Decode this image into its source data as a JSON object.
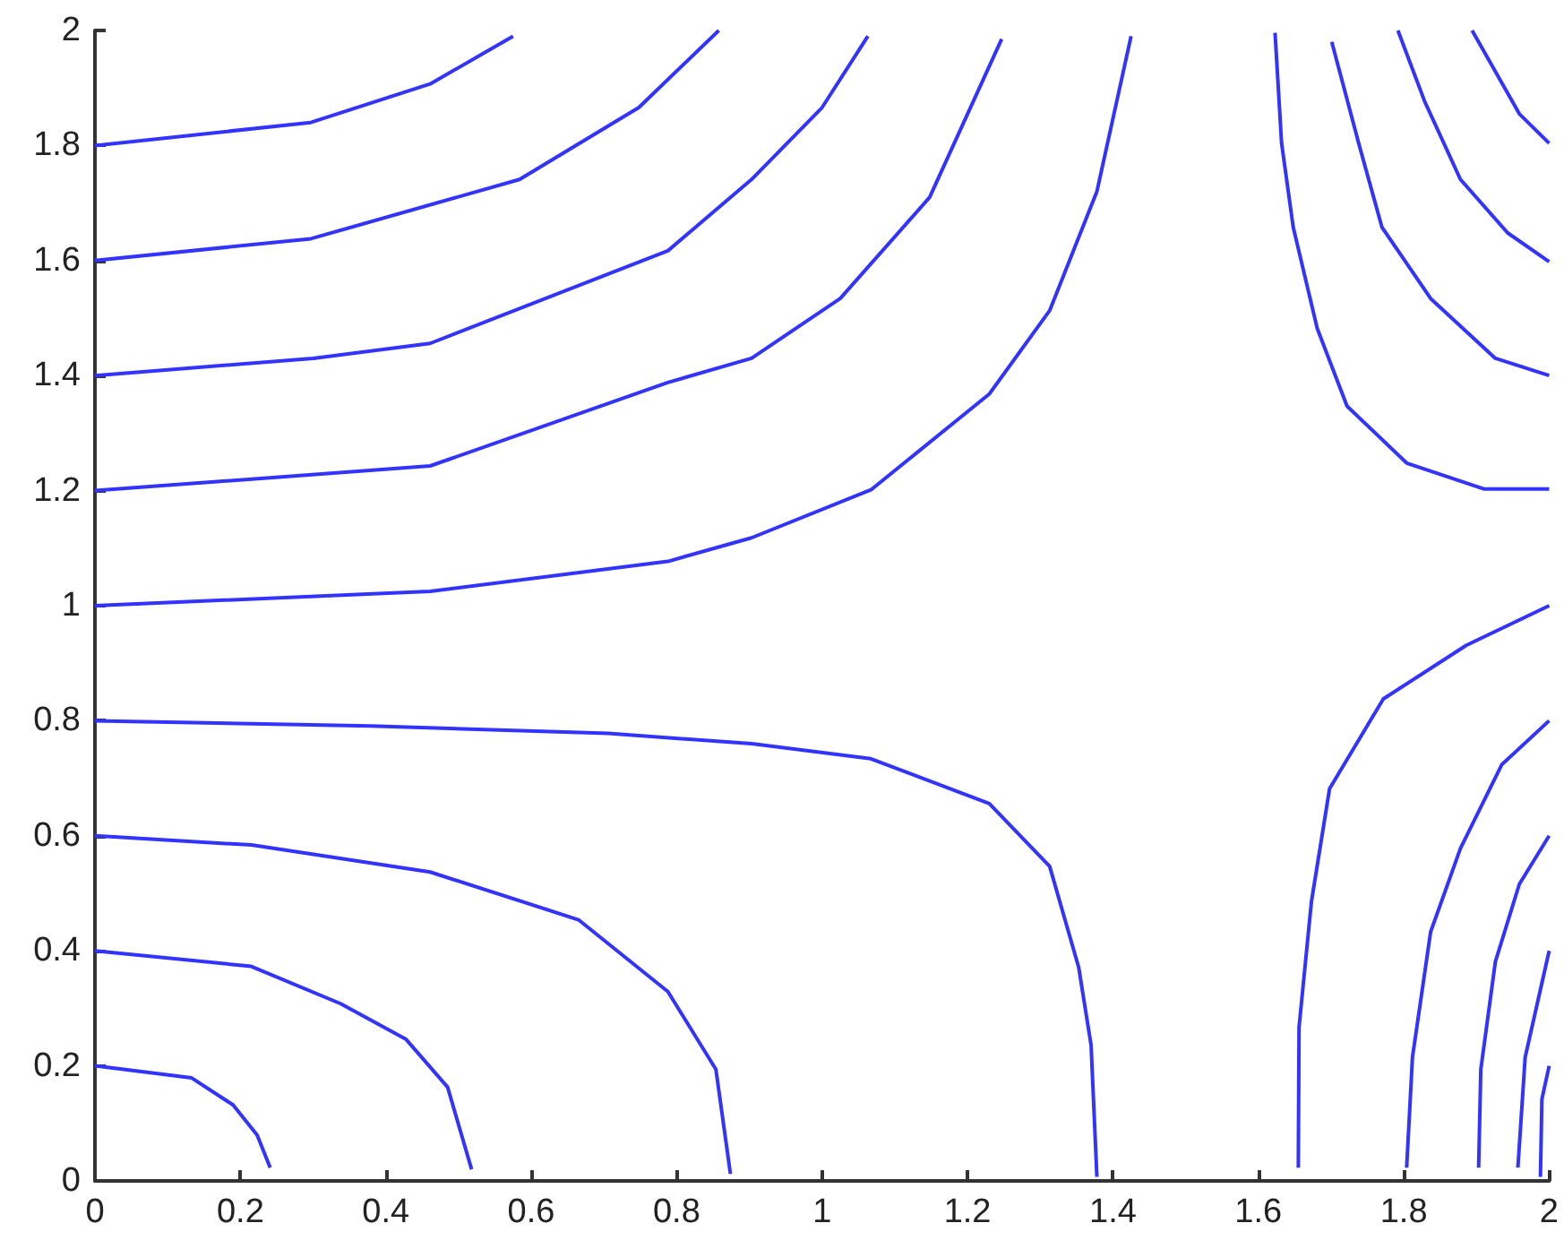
{
  "chart_data": {
    "type": "line",
    "xlim": [
      0,
      2
    ],
    "ylim": [
      0,
      2
    ],
    "xticks": [
      0,
      0.2,
      0.4,
      0.6,
      0.8,
      1,
      1.2,
      1.4,
      1.6,
      1.8,
      2
    ],
    "yticks": [
      0,
      0.2,
      0.4,
      0.6,
      0.8,
      1,
      1.2,
      1.4,
      1.6,
      1.8,
      2
    ],
    "grid": false,
    "marker": "none",
    "line_style": "solid",
    "series": [
      {
        "color": "#3333ff",
        "x": [
          0,
          0.297,
          0.461,
          0.575
        ],
        "values": [
          1.8,
          1.84,
          1.907,
          1.99
        ]
      },
      {
        "color": "#3333ff",
        "x": [
          0,
          0.297,
          0.584,
          0.748,
          0.858
        ],
        "values": [
          1.6,
          1.638,
          1.741,
          1.866,
          2.0
        ]
      },
      {
        "color": "#3333ff",
        "x": [
          0,
          0.3,
          0.461,
          0.788,
          0.903,
          1.0,
          1.063
        ],
        "values": [
          1.4,
          1.43,
          1.456,
          1.617,
          1.741,
          1.866,
          1.99
        ]
      },
      {
        "color": "#3333ff",
        "x": [
          0,
          0.461,
          0.788,
          0.903,
          1.025,
          1.148,
          1.247
        ],
        "values": [
          1.2,
          1.243,
          1.388,
          1.43,
          1.534,
          1.71,
          1.985
        ]
      },
      {
        "color": "#3333ff",
        "x": [
          0,
          0.461,
          0.788,
          0.903,
          1.068,
          1.23,
          1.313,
          1.378,
          1.425
        ],
        "values": [
          1.0,
          1.025,
          1.077,
          1.118,
          1.202,
          1.368,
          1.513,
          1.72,
          1.99
        ]
      },
      {
        "color": "#3333ff",
        "x": [
          1.623,
          1.632,
          1.648,
          1.681,
          1.722,
          1.804,
          1.91,
          2.0
        ],
        "values": [
          1.996,
          1.804,
          1.658,
          1.482,
          1.347,
          1.248,
          1.203,
          1.203
        ]
      },
      {
        "color": "#3333ff",
        "x": [
          1.701,
          1.738,
          1.77,
          1.837,
          1.926,
          2.0
        ],
        "values": [
          1.98,
          1.804,
          1.658,
          1.534,
          1.43,
          1.4
        ]
      },
      {
        "color": "#3333ff",
        "x": [
          1.792,
          1.829,
          1.878,
          1.943,
          2.0
        ],
        "values": [
          2.0,
          1.876,
          1.741,
          1.648,
          1.598
        ]
      },
      {
        "color": "#3333ff",
        "x": [
          1.894,
          1.959,
          2.0
        ],
        "values": [
          2.0,
          1.855,
          1.804
        ]
      },
      {
        "color": "#3333ff",
        "x": [
          0,
          0.133,
          0.19,
          0.223,
          0.241
        ],
        "values": [
          0.2,
          0.179,
          0.132,
          0.08,
          0.023
        ]
      },
      {
        "color": "#3333ff",
        "x": [
          0,
          0.215,
          0.338,
          0.428,
          0.485,
          0.518
        ],
        "values": [
          0.4,
          0.373,
          0.308,
          0.246,
          0.163,
          0.02
        ]
      },
      {
        "color": "#3333ff",
        "x": [
          0,
          0.215,
          0.461,
          0.665,
          0.788,
          0.854,
          0.874
        ],
        "values": [
          0.6,
          0.584,
          0.537,
          0.454,
          0.329,
          0.194,
          0.012
        ]
      },
      {
        "color": "#3333ff",
        "x": [
          0,
          0.379,
          0.706,
          0.903,
          1.067,
          1.23,
          1.313,
          1.353,
          1.37,
          1.378
        ],
        "values": [
          0.8,
          0.791,
          0.778,
          0.76,
          0.734,
          0.656,
          0.547,
          0.371,
          0.236,
          0.007
        ]
      },
      {
        "color": "#3333ff",
        "x": [
          2.0,
          1.886,
          1.772,
          1.698,
          1.673,
          1.656,
          1.655
        ],
        "values": [
          1.0,
          0.931,
          0.838,
          0.682,
          0.485,
          0.267,
          0.023
        ]
      },
      {
        "color": "#3333ff",
        "x": [
          2.0,
          1.935,
          1.878,
          1.837,
          1.812,
          1.804
        ],
        "values": [
          0.8,
          0.724,
          0.578,
          0.433,
          0.215,
          0.023
        ]
      },
      {
        "color": "#3333ff",
        "x": [
          2.0,
          1.959,
          1.926,
          1.906,
          1.903
        ],
        "values": [
          0.6,
          0.516,
          0.381,
          0.194,
          0.023
        ]
      },
      {
        "color": "#3333ff",
        "x": [
          2.0,
          1.967,
          1.957
        ],
        "values": [
          0.4,
          0.215,
          0.023
        ]
      },
      {
        "color": "#3333ff",
        "x": [
          2.0,
          1.99,
          1.988
        ],
        "values": [
          0.2,
          0.142,
          0.007
        ]
      }
    ]
  }
}
